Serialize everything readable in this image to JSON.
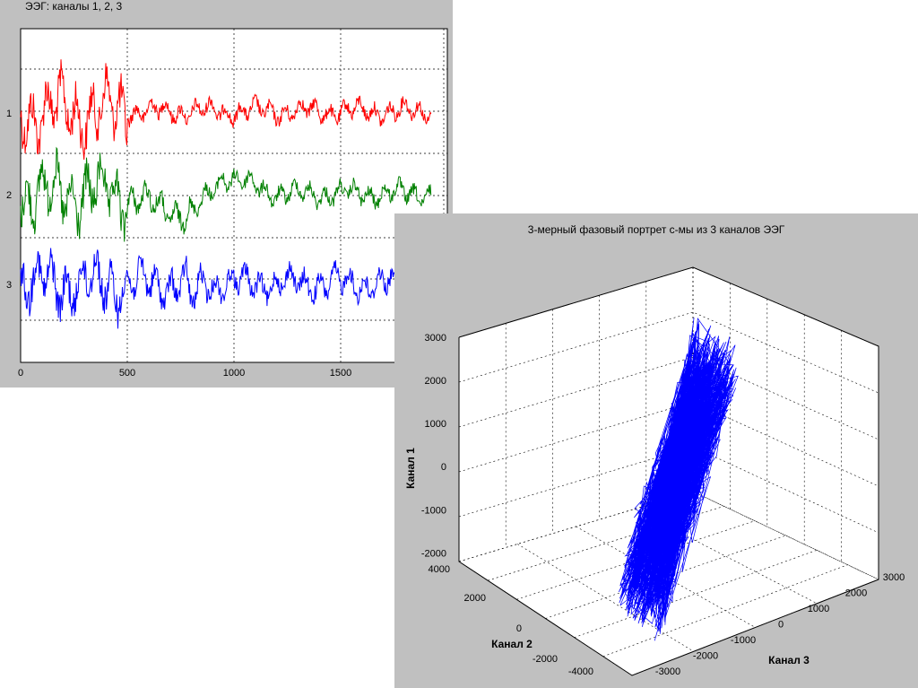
{
  "chart_data": [
    {
      "type": "line",
      "title": "ЭЭГ: каналы 1, 2, 3",
      "x_ticks": [
        0,
        500,
        1000,
        1500
      ],
      "xlim": [
        0,
        2000
      ],
      "y_tick_labels": [
        "1",
        "2",
        "3"
      ],
      "grid": true,
      "series": [
        {
          "name": "1",
          "color": "#ff0000",
          "offset": 1
        },
        {
          "name": "2",
          "color": "#008000",
          "offset": 2
        },
        {
          "name": "3",
          "color": "#0000ff",
          "offset": 3
        }
      ]
    },
    {
      "type": "line",
      "title": "3-мерный фазовый портрет с-мы из 3 каналов ЭЭГ",
      "xlabel": "Канал 3",
      "ylabel": "Канал 2",
      "zlabel": "Канал 1",
      "x_ticks": [
        "-3000",
        "-2000",
        "-1000",
        "0",
        "1000",
        "2000",
        "3000"
      ],
      "y_ticks": [
        "-4000",
        "-2000",
        "0",
        "2000",
        "4000"
      ],
      "z_ticks": [
        "3000",
        "2000",
        "1000",
        "0",
        "-1000",
        "-2000"
      ],
      "color": "#0000ff",
      "grid": true
    }
  ]
}
